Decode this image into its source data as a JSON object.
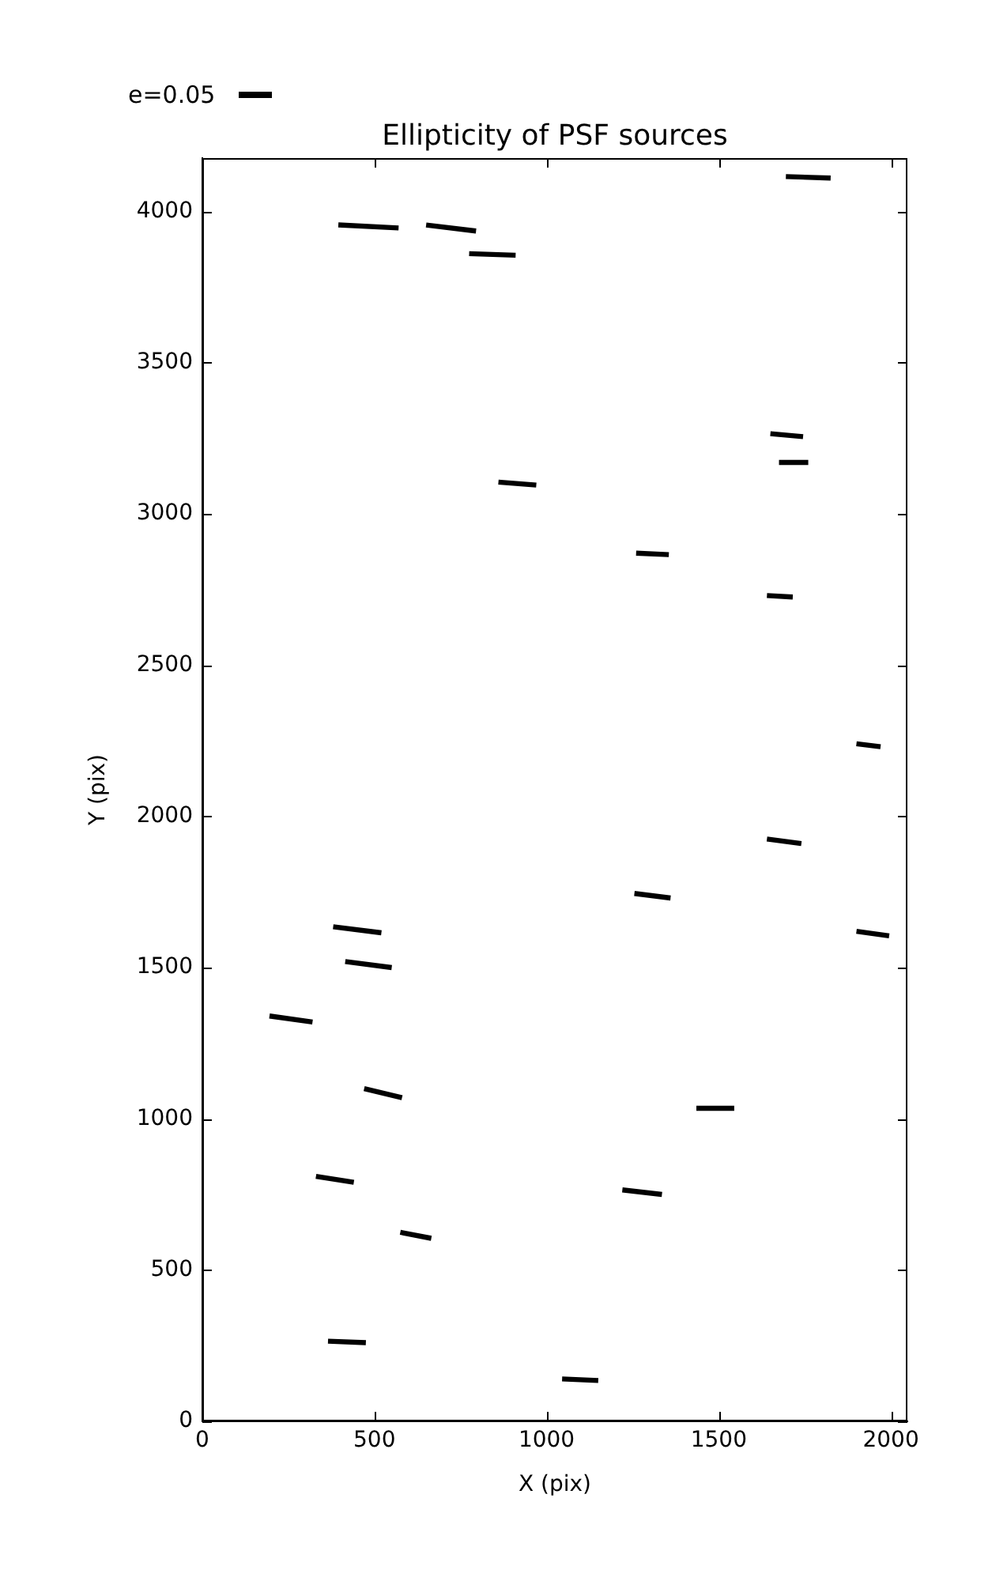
{
  "chart_data": {
    "type": "line",
    "title": "Ellipticity of PSF sources",
    "xlabel": "X (pix)",
    "ylabel": "Y (pix)",
    "annotations": [
      "e=0.05"
    ],
    "xlim": [
      0,
      2048
    ],
    "ylim": [
      0,
      4176
    ],
    "xticks": [
      0,
      500,
      1000,
      1500,
      2000
    ],
    "yticks": [
      0,
      500,
      1000,
      1500,
      2000,
      2500,
      3000,
      3500,
      4000
    ],
    "marker": "none",
    "line_style": "solid",
    "series": [
      {
        "color": "#000000",
        "x": [
          395,
          570
        ],
        "values": [
          3955,
          3945
        ]
      },
      {
        "color": "#000000",
        "x": [
          650,
          795
        ],
        "values": [
          3955,
          3935
        ]
      },
      {
        "color": "#000000",
        "x": [
          775,
          910
        ],
        "values": [
          3860,
          3855
        ]
      },
      {
        "color": "#000000",
        "x": [
          1695,
          1825
        ],
        "values": [
          4115,
          4110
        ]
      },
      {
        "color": "#000000",
        "x": [
          860,
          970
        ],
        "values": [
          3105,
          3095
        ]
      },
      {
        "color": "#000000",
        "x": [
          1650,
          1745
        ],
        "values": [
          3265,
          3255
        ]
      },
      {
        "color": "#000000",
        "x": [
          1675,
          1760
        ],
        "values": [
          3170,
          3170
        ]
      },
      {
        "color": "#000000",
        "x": [
          1260,
          1355
        ],
        "values": [
          2870,
          2865
        ]
      },
      {
        "color": "#000000",
        "x": [
          1640,
          1715
        ],
        "values": [
          2730,
          2725
        ]
      },
      {
        "color": "#000000",
        "x": [
          1900,
          1970
        ],
        "values": [
          2240,
          2230
        ]
      },
      {
        "color": "#000000",
        "x": [
          1640,
          1740
        ],
        "values": [
          1925,
          1910
        ]
      },
      {
        "color": "#000000",
        "x": [
          1255,
          1360
        ],
        "values": [
          1745,
          1730
        ]
      },
      {
        "color": "#000000",
        "x": [
          1900,
          1995
        ],
        "values": [
          1620,
          1605
        ]
      },
      {
        "color": "#000000",
        "x": [
          380,
          520
        ],
        "values": [
          1635,
          1615
        ]
      },
      {
        "color": "#000000",
        "x": [
          415,
          550
        ],
        "values": [
          1520,
          1500
        ]
      },
      {
        "color": "#000000",
        "x": [
          195,
          320
        ],
        "values": [
          1340,
          1320
        ]
      },
      {
        "color": "#000000",
        "x": [
          470,
          580
        ],
        "values": [
          1100,
          1070
        ]
      },
      {
        "color": "#000000",
        "x": [
          1435,
          1545
        ],
        "values": [
          1035,
          1035
        ]
      },
      {
        "color": "#000000",
        "x": [
          330,
          440
        ],
        "values": [
          810,
          790
        ]
      },
      {
        "color": "#000000",
        "x": [
          575,
          665
        ],
        "values": [
          625,
          605
        ]
      },
      {
        "color": "#000000",
        "x": [
          1220,
          1335
        ],
        "values": [
          765,
          750
        ]
      },
      {
        "color": "#000000",
        "x": [
          365,
          475
        ],
        "values": [
          265,
          260
        ]
      },
      {
        "color": "#000000",
        "x": [
          1045,
          1150
        ],
        "values": [
          140,
          135
        ]
      }
    ]
  }
}
